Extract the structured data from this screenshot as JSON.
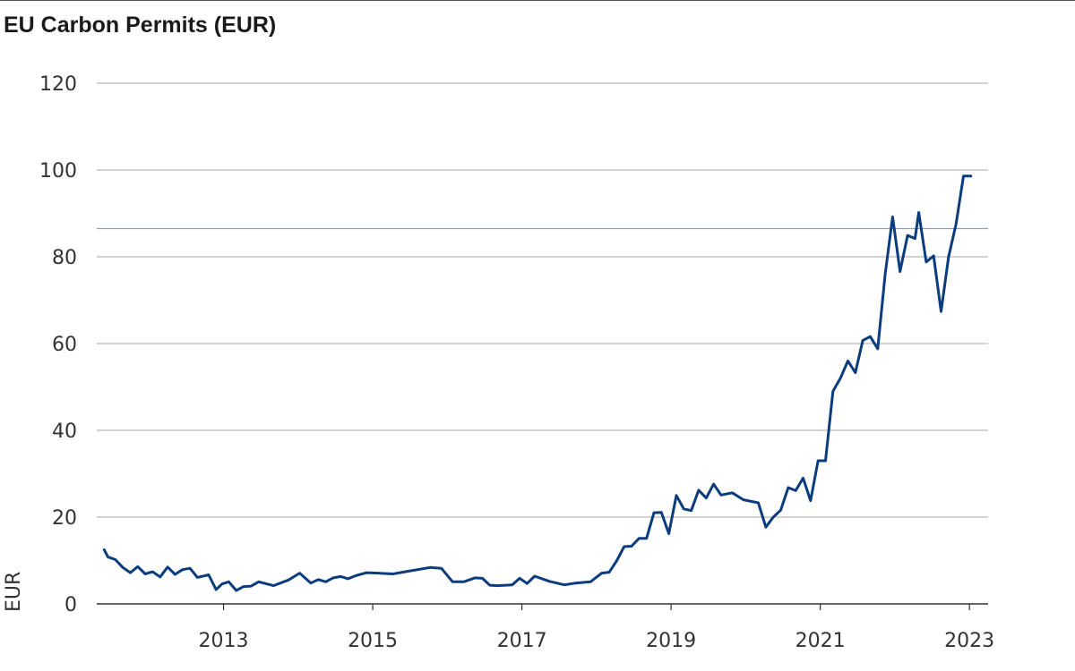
{
  "chart_data": {
    "type": "line",
    "title": "EU Carbon Permits (EUR)",
    "xlabel": "",
    "ylabel": "EUR",
    "ylim": [
      0,
      120
    ],
    "xlim": [
      2011.3,
      2023.25
    ],
    "yticks": [
      0,
      20,
      40,
      60,
      80,
      100,
      120
    ],
    "xticks": [
      2013,
      2015,
      2017,
      2019,
      2021,
      2023
    ],
    "xtick_labels": [
      "2013",
      "2015",
      "2017",
      "2019",
      "2021",
      "2023"
    ],
    "grid": true,
    "reference_line": {
      "y": 86.5,
      "color": "#8a9fc0"
    },
    "colors": {
      "line": "#0b3c7d",
      "grid": "#a6a6a6",
      "axis": "#333333"
    },
    "series": [
      {
        "x": [
          2011.4,
          2011.45,
          2011.55,
          2011.65,
          2011.75,
          2011.85,
          2011.95,
          2012.05,
          2012.15,
          2012.25,
          2012.35,
          2012.45,
          2012.55,
          2012.65,
          2012.8,
          2012.9,
          2012.98,
          2013.07,
          2013.17,
          2013.27,
          2013.37,
          2013.47,
          2013.67,
          2013.87,
          2014.02,
          2014.17,
          2014.27,
          2014.37,
          2014.47,
          2014.57,
          2014.67,
          2014.77,
          2014.92,
          2015.07,
          2015.27,
          2015.5,
          2015.77,
          2015.92,
          2016.07,
          2016.22,
          2016.37,
          2016.47,
          2016.57,
          2016.67,
          2016.87,
          2016.97,
          2017.07,
          2017.17,
          2017.37,
          2017.57,
          2017.72,
          2017.92,
          2018.07,
          2018.17,
          2018.27,
          2018.37,
          2018.47,
          2018.57,
          2018.67,
          2018.77,
          2018.87,
          2018.97,
          2019.07,
          2019.17,
          2019.27,
          2019.37,
          2019.47,
          2019.57,
          2019.67,
          2019.82,
          2019.97,
          2020.17,
          2020.27,
          2020.37,
          2020.47,
          2020.57,
          2020.67,
          2020.77,
          2020.87,
          2020.97,
          2021.07,
          2021.17,
          2021.27,
          2021.37,
          2021.47,
          2021.57,
          2021.67,
          2021.77,
          2021.87,
          2021.97,
          2022.07,
          2022.17,
          2022.27,
          2022.32,
          2022.42,
          2022.52,
          2022.62,
          2022.72,
          2022.82,
          2022.92,
          2023.02
        ],
        "y": [
          12.5,
          10.8,
          10.2,
          8.4,
          7.2,
          8.6,
          6.9,
          7.4,
          6.2,
          8.5,
          6.8,
          7.9,
          8.2,
          6.1,
          6.7,
          3.3,
          4.6,
          5.1,
          3.1,
          4.0,
          4.1,
          5.1,
          4.2,
          5.5,
          7.1,
          4.8,
          5.6,
          5.1,
          6.0,
          6.3,
          5.8,
          6.5,
          7.2,
          7.1,
          6.9,
          7.6,
          8.4,
          8.2,
          5.1,
          5.1,
          6.0,
          5.9,
          4.3,
          4.2,
          4.4,
          5.9,
          4.7,
          6.4,
          5.2,
          4.4,
          4.8,
          5.1,
          7.1,
          7.3,
          9.9,
          13.2,
          13.3,
          15.1,
          15.1,
          21.0,
          21.1,
          16.2,
          25.0,
          21.9,
          21.5,
          26.2,
          24.4,
          27.6,
          25.1,
          25.6,
          24.0,
          23.3,
          17.7,
          20.0,
          21.6,
          26.8,
          26.1,
          29.0,
          23.8,
          33.0,
          33.0,
          49.0,
          52.0,
          56.0,
          53.3,
          60.7,
          61.6,
          58.8,
          76.0,
          89.2,
          76.6,
          84.9,
          84.2,
          90.2,
          78.8,
          80.2,
          67.4,
          80.0,
          87.5,
          98.6,
          98.6
        ]
      }
    ]
  }
}
